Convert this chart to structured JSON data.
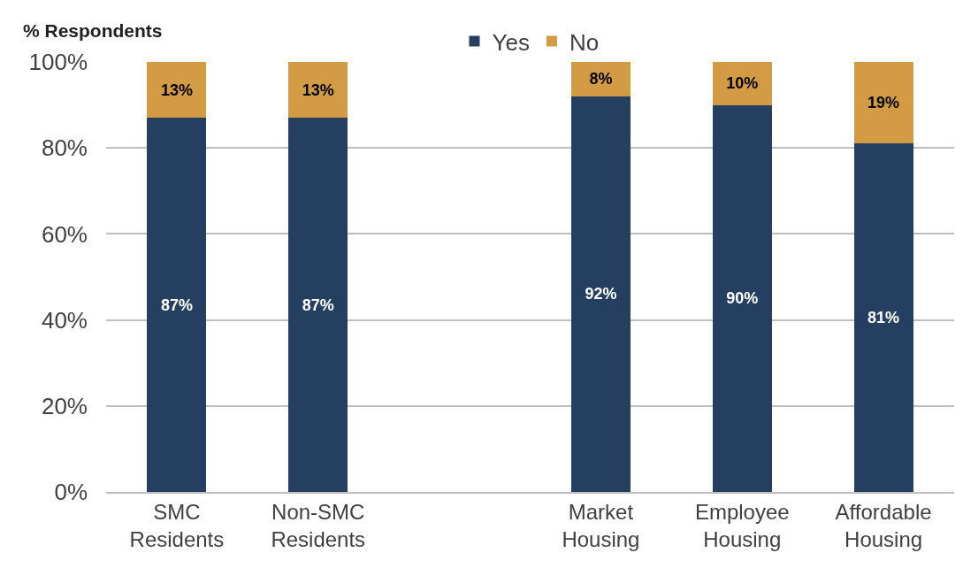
{
  "chart_data": {
    "type": "bar",
    "stacked": true,
    "ylabel": "% Respondents",
    "categories": [
      "SMC Residents",
      "Non-SMC Residents",
      null,
      "Market Housing",
      "Employee Housing",
      "Affordable Housing"
    ],
    "series": [
      {
        "name": "Yes",
        "color": "#243f60",
        "values": [
          87,
          87,
          null,
          92,
          90,
          81
        ],
        "value_labels": [
          "87%",
          "87%",
          null,
          "92%",
          "90%",
          "81%"
        ]
      },
      {
        "name": "No",
        "color": "#d39b43",
        "values": [
          13,
          13,
          null,
          8,
          10,
          19
        ],
        "value_labels": [
          "13%",
          "13%",
          null,
          "8%",
          "10%",
          "19%"
        ]
      }
    ],
    "ylim": [
      0,
      100
    ],
    "yticks": [
      {
        "value": 0,
        "label": "0%"
      },
      {
        "value": 20,
        "label": "20%"
      },
      {
        "value": 40,
        "label": "40%"
      },
      {
        "value": 60,
        "label": "60%"
      },
      {
        "value": 80,
        "label": "80%"
      },
      {
        "value": 100,
        "label": "100%"
      }
    ],
    "grid": "y",
    "legend": "top"
  }
}
